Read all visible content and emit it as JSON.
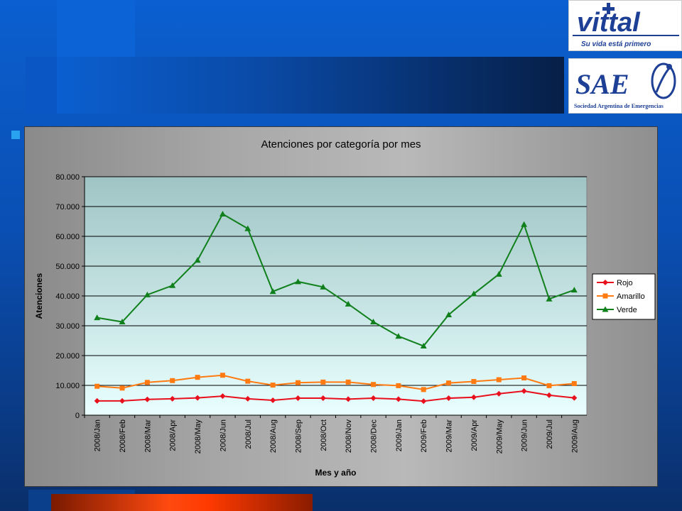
{
  "logos": {
    "vittal": {
      "name": "vittal",
      "tagline": "Su vida está primero"
    },
    "sae": {
      "name": "SAE",
      "subtitle": "Sociedad Argentina de Emergencias"
    }
  },
  "colors": {
    "plot_bg_top": "#9fc4c4",
    "plot_bg_bottom": "#e9ffff",
    "rojo": "#e8101c",
    "amarillo": "#ff7a10",
    "verde": "#10801c"
  },
  "chart_data": {
    "type": "line",
    "title": "Atenciones por categoría por mes",
    "xlabel": "Mes y año",
    "ylabel": "Atenciones",
    "ylim": [
      0,
      80000
    ],
    "yticks": [
      0,
      10000,
      20000,
      30000,
      40000,
      50000,
      60000,
      70000,
      80000
    ],
    "ytick_labels": [
      "0",
      "10.000",
      "20.000",
      "30.000",
      "40.000",
      "50.000",
      "60.000",
      "70.000",
      "80.000"
    ],
    "grid": true,
    "legend_position": "right",
    "categories": [
      "2008/Jan",
      "2008/Feb",
      "2008/Mar",
      "2008/Apr",
      "2008/May",
      "2008/Jun",
      "2008/Jul",
      "2008/Aug",
      "2008/Sep",
      "2008/Oct",
      "2008/Nov",
      "2008/Dec",
      "2009/Jan",
      "2009/Feb",
      "2009/Mar",
      "2009/Apr",
      "2009/May",
      "2009/Jun",
      "2009/Jul",
      "2009/Aug"
    ],
    "series": [
      {
        "name": "Rojo",
        "marker": "diamond",
        "color": "#e8101c",
        "values": [
          4800,
          4800,
          5300,
          5500,
          5800,
          6400,
          5500,
          5000,
          5700,
          5700,
          5400,
          5700,
          5400,
          4700,
          5700,
          6000,
          7200,
          8100,
          6700,
          5800
        ]
      },
      {
        "name": "Amarillo",
        "marker": "square",
        "color": "#ff7a10",
        "values": [
          9700,
          9100,
          11000,
          11600,
          12700,
          13400,
          11400,
          10100,
          10900,
          11100,
          11100,
          10300,
          9900,
          8600,
          10800,
          11300,
          11900,
          12500,
          9900,
          10600
        ]
      },
      {
        "name": "Verde",
        "marker": "triangle",
        "color": "#10801c",
        "values": [
          32700,
          31300,
          40400,
          43500,
          52000,
          67500,
          62600,
          41500,
          44800,
          43000,
          37300,
          31300,
          26500,
          23200,
          33700,
          40700,
          47300,
          64000,
          39000,
          42000
        ]
      }
    ]
  }
}
